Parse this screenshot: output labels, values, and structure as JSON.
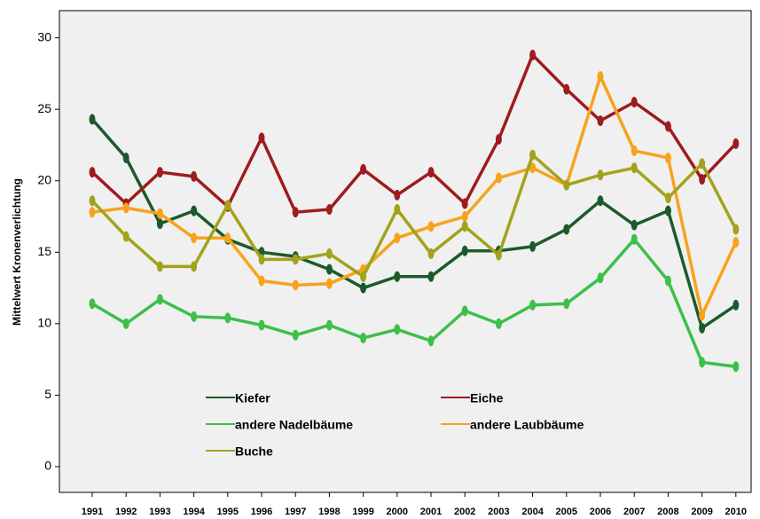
{
  "chart_data": {
    "type": "line",
    "ylabel": "Mittelwert Kronenverlichtung",
    "categories": [
      "1991",
      "1992",
      "1993",
      "1994",
      "1995",
      "1996",
      "1997",
      "1998",
      "1999",
      "2000",
      "2001",
      "2002",
      "2003",
      "2004",
      "2005",
      "2006",
      "2007",
      "2008",
      "2009",
      "2010"
    ],
    "series": [
      {
        "name": "Kiefer",
        "color": "#1b5a2c",
        "values": [
          24.3,
          21.6,
          17.0,
          17.9,
          15.9,
          15.0,
          14.7,
          13.8,
          12.5,
          13.3,
          13.3,
          15.1,
          15.1,
          15.4,
          16.6,
          18.6,
          16.9,
          17.9,
          9.7,
          11.3
        ]
      },
      {
        "name": "Eiche",
        "color": "#9e1b1e",
        "values": [
          20.6,
          18.4,
          20.6,
          20.3,
          18.2,
          23.0,
          17.8,
          18.0,
          20.8,
          19.0,
          20.6,
          18.4,
          22.9,
          28.8,
          26.4,
          24.2,
          25.5,
          23.8,
          20.1,
          22.6
        ]
      },
      {
        "name": "andere Nadelbäume",
        "color": "#3dbf4b",
        "values": [
          11.4,
          10.0,
          11.7,
          10.5,
          10.4,
          9.9,
          9.2,
          9.9,
          9.0,
          9.6,
          8.8,
          10.9,
          10.0,
          11.3,
          11.4,
          13.2,
          15.9,
          13.0,
          7.3,
          7.0
        ]
      },
      {
        "name": "andere Laubbäume",
        "color": "#f8a21c",
        "values": [
          17.8,
          18.1,
          17.7,
          16.0,
          16.0,
          13.0,
          12.7,
          12.8,
          13.8,
          16.0,
          16.8,
          17.5,
          20.2,
          20.9,
          19.7,
          27.3,
          22.1,
          21.6,
          10.6,
          15.7
        ]
      },
      {
        "name": "Buche",
        "color": "#a3a31b",
        "values": [
          18.6,
          16.1,
          14.0,
          14.0,
          18.3,
          14.5,
          14.5,
          14.9,
          13.3,
          18.0,
          14.9,
          16.8,
          14.8,
          21.8,
          19.7,
          20.4,
          20.9,
          18.8,
          21.2,
          16.6
        ]
      }
    ],
    "ylim": [
      -1.8,
      31.9
    ],
    "yticks": [
      0,
      5,
      10,
      15,
      20,
      25,
      30
    ],
    "grid": false
  }
}
